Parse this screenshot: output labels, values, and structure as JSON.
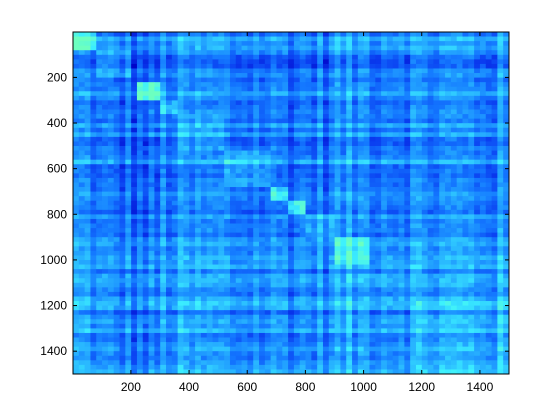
{
  "chart_data": {
    "type": "heatmap",
    "title": "",
    "xlabel": "",
    "ylabel": "",
    "xlim": [
      1,
      1500
    ],
    "ylim": [
      1,
      1500
    ],
    "y_axis_direction": "top-to-bottom",
    "x_ticks": [
      200,
      400,
      600,
      800,
      1000,
      1200,
      1400
    ],
    "y_ticks": [
      200,
      400,
      600,
      800,
      1000,
      1200,
      1400
    ],
    "x_tick_labels": [
      "200",
      "400",
      "600",
      "800",
      "1000",
      "1200",
      "1400"
    ],
    "y_tick_labels": [
      "200",
      "400",
      "600",
      "800",
      "1000",
      "1200",
      "1400"
    ],
    "colormap": [
      "#0000c8",
      "#0a3cf0",
      "#1478ff",
      "#28b4ff",
      "#3cf0ff",
      "#6cffc0"
    ],
    "value_range": [
      0,
      1
    ],
    "diagonal_blocks": [
      {
        "start": 1,
        "end": 80,
        "value": 0.85
      },
      {
        "start": 80,
        "end": 200,
        "value": 0.45
      },
      {
        "start": 220,
        "end": 300,
        "value": 0.95
      },
      {
        "start": 300,
        "end": 360,
        "value": 0.75
      },
      {
        "start": 360,
        "end": 520,
        "value": 0.55
      },
      {
        "start": 520,
        "end": 680,
        "value": 0.65
      },
      {
        "start": 680,
        "end": 740,
        "value": 0.7
      },
      {
        "start": 740,
        "end": 800,
        "value": 0.85
      },
      {
        "start": 800,
        "end": 900,
        "value": 0.55
      },
      {
        "start": 900,
        "end": 1020,
        "value": 0.8
      },
      {
        "start": 1020,
        "end": 1180,
        "value": 0.55
      },
      {
        "start": 1180,
        "end": 1500,
        "value": 0.6
      }
    ],
    "row_band_values": [
      {
        "start": 1,
        "end": 80,
        "value": 0.45
      },
      {
        "start": 80,
        "end": 220,
        "value": 0.3
      },
      {
        "start": 220,
        "end": 300,
        "value": 0.5
      },
      {
        "start": 300,
        "end": 520,
        "value": 0.45
      },
      {
        "start": 520,
        "end": 680,
        "value": 0.5
      },
      {
        "start": 680,
        "end": 900,
        "value": 0.35
      },
      {
        "start": 900,
        "end": 1180,
        "value": 0.5
      },
      {
        "start": 1180,
        "end": 1500,
        "value": 0.55
      }
    ],
    "col_band_values": [
      {
        "start": 1,
        "end": 80,
        "value": 0.5
      },
      {
        "start": 80,
        "end": 200,
        "value": 0.3
      },
      {
        "start": 200,
        "end": 300,
        "value": 0.25
      },
      {
        "start": 300,
        "end": 520,
        "value": 0.45
      },
      {
        "start": 520,
        "end": 680,
        "value": 0.4
      },
      {
        "start": 680,
        "end": 900,
        "value": 0.4
      },
      {
        "start": 900,
        "end": 1180,
        "value": 0.55
      },
      {
        "start": 1180,
        "end": 1500,
        "value": 0.5
      }
    ]
  }
}
